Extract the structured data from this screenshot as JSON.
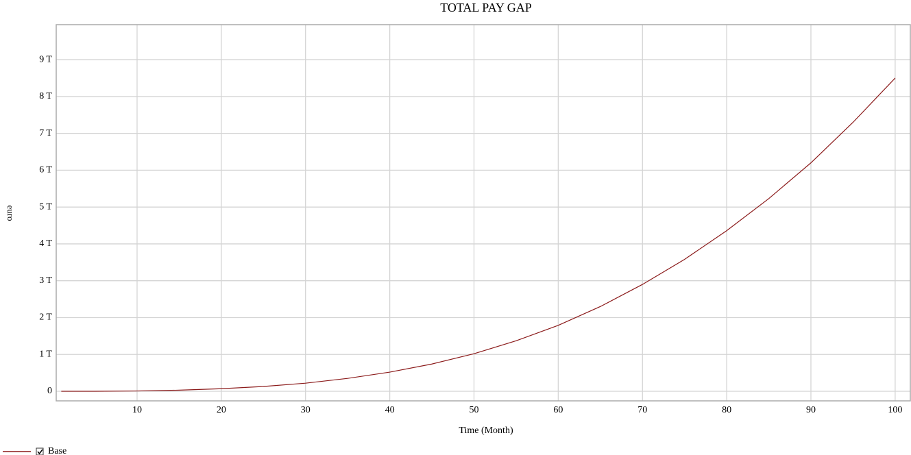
{
  "chart_data": {
    "type": "line",
    "title": "TOTAL PAY GAP",
    "x_label": "Time (Month)",
    "y_label": "euro",
    "x": [
      1,
      5,
      10,
      15,
      20,
      25,
      30,
      35,
      40,
      45,
      50,
      55,
      60,
      65,
      70,
      75,
      80,
      85,
      90,
      95,
      100
    ],
    "series": [
      {
        "name": "Base",
        "color": "#8b1a1a",
        "values": [
          0,
          1000000000.0,
          9000000000.0,
          30000000000.0,
          70000000000.0,
          130000000000.0,
          220000000000.0,
          350000000000.0,
          520000000000.0,
          740000000000.0,
          1020000000000.0,
          1370000000000.0,
          1790000000000.0,
          2300000000000.0,
          2900000000000.0,
          3580000000000.0,
          4360000000000.0,
          5230000000000.0,
          6200000000000.0,
          7300000000000.0,
          8500000000000.0
        ]
      }
    ],
    "xlim": [
      0.4,
      101.8
    ],
    "ylim": [
      -260000000000.0,
      9950000000000.0
    ],
    "xticks": [
      10,
      20,
      30,
      40,
      50,
      60,
      70,
      80,
      90,
      100
    ],
    "yticks": [
      0,
      {
        "value": 1000000000000.0,
        "label": "1 T"
      },
      {
        "value": 2000000000000.0,
        "label": "2 T"
      },
      {
        "value": 3000000000000.0,
        "label": "3 T"
      },
      {
        "value": 4000000000000.0,
        "label": "4 T"
      },
      {
        "value": 5000000000000.0,
        "label": "5 T"
      },
      {
        "value": 6000000000000.0,
        "label": "6 T"
      },
      {
        "value": 7000000000000.0,
        "label": "7 T"
      },
      {
        "value": 8000000000000.0,
        "label": "8 T"
      },
      {
        "value": 9000000000000.0,
        "label": "9 T"
      }
    ],
    "grid": true
  }
}
